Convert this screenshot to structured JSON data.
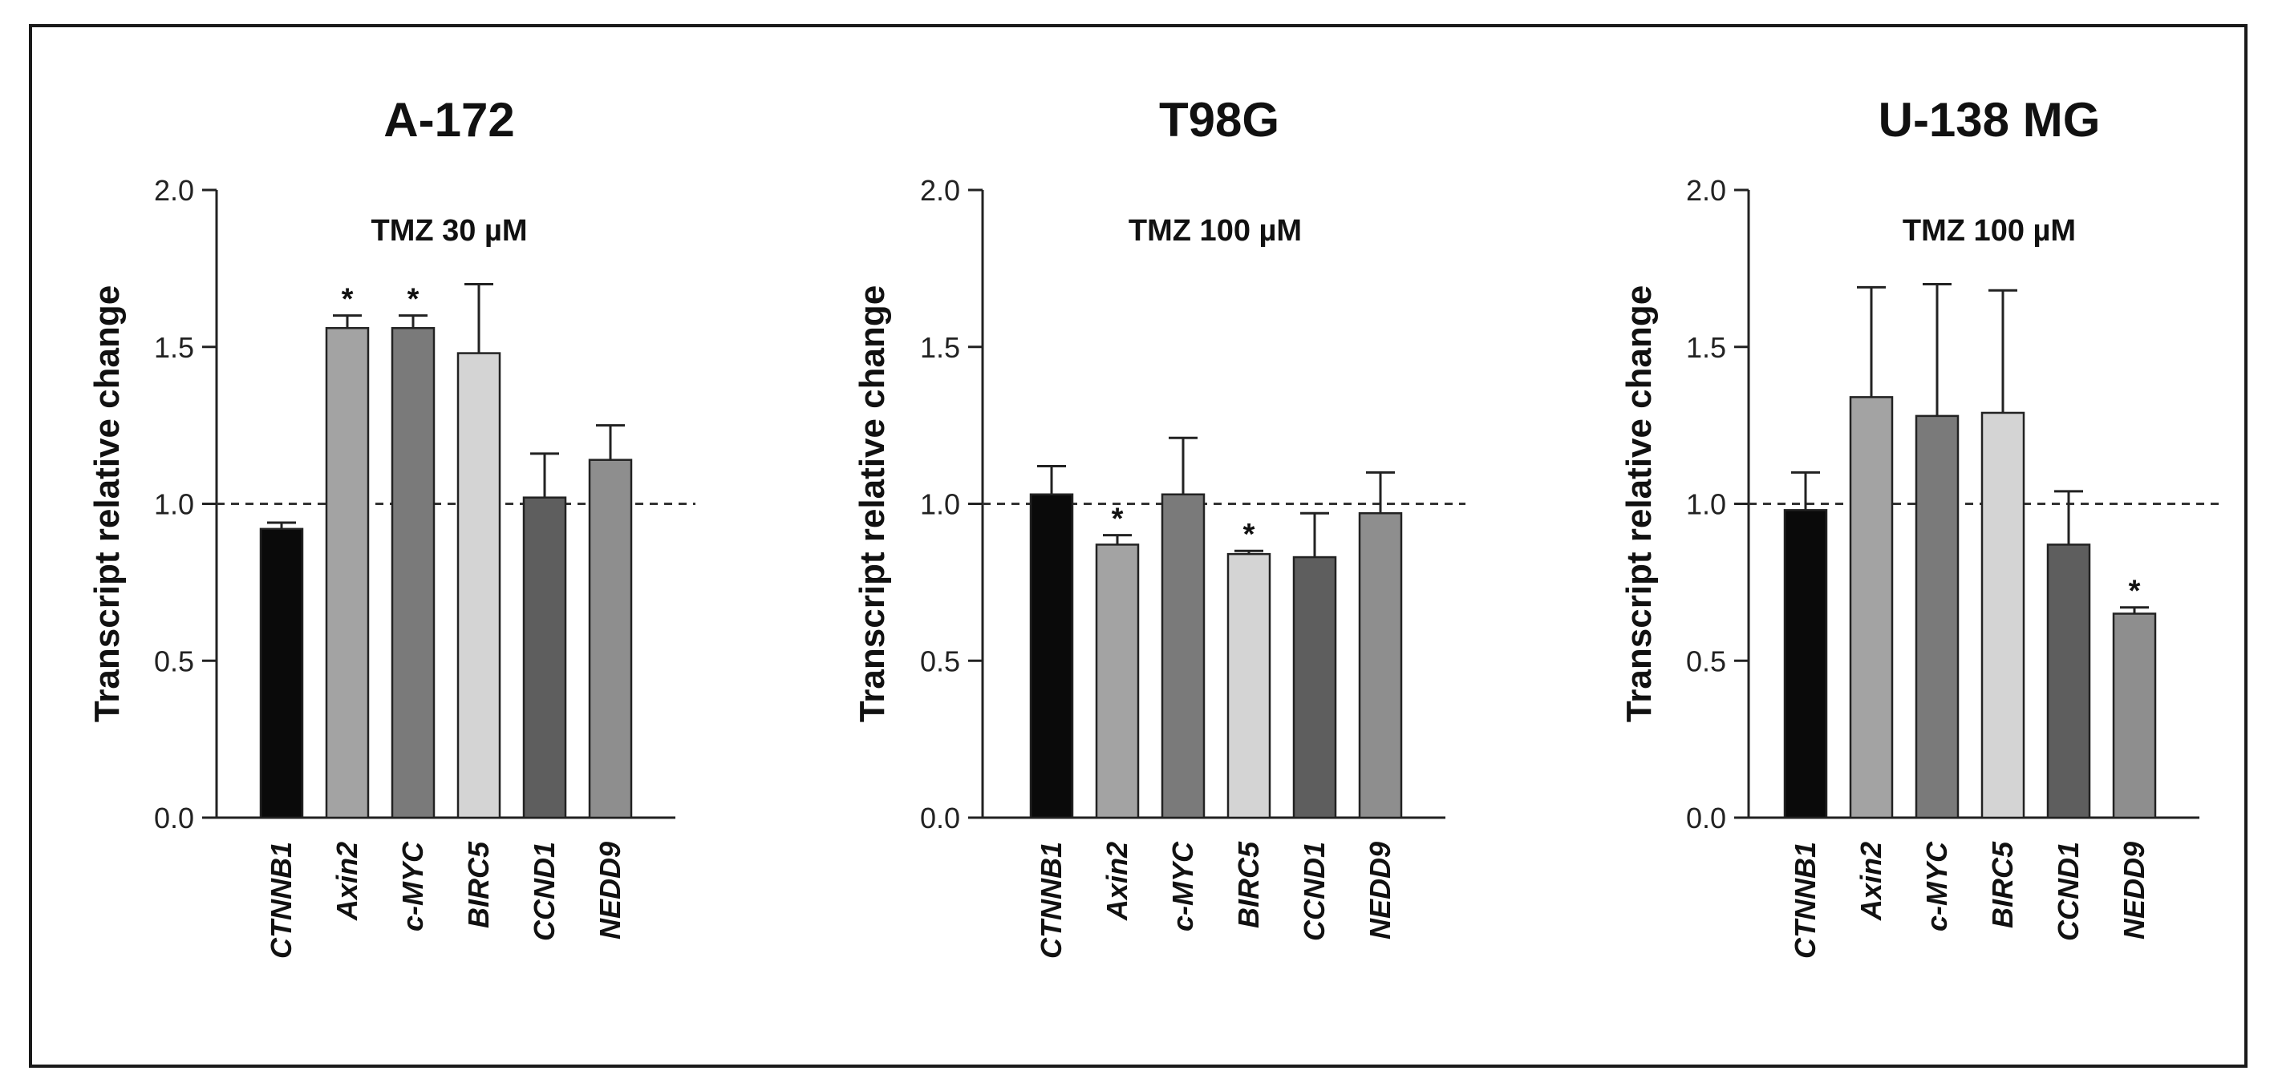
{
  "chart_data": [
    {
      "type": "bar",
      "title": "A-172",
      "subtitle": "TMZ 30 µM",
      "xlabel": "",
      "ylabel": "Transcript relative change",
      "ylim": [
        0,
        2.0
      ],
      "yticks": [
        "0.0",
        "0.5",
        "1.0",
        "1.5",
        "2.0"
      ],
      "reference_line": 1.0,
      "categories": [
        "CTNNB1",
        "Axin2",
        "c-MYC",
        "BIRC5",
        "CCND1",
        "NEDD9"
      ],
      "values": [
        0.92,
        1.56,
        1.56,
        1.48,
        1.02,
        1.14
      ],
      "errors": [
        0.02,
        0.04,
        0.04,
        0.22,
        0.14,
        0.11
      ],
      "significance": [
        "",
        "*",
        "*",
        "",
        "",
        ""
      ]
    },
    {
      "type": "bar",
      "title": "T98G",
      "subtitle": "TMZ 100 µM",
      "xlabel": "",
      "ylabel": "Transcript relative change",
      "ylim": [
        0,
        2.0
      ],
      "yticks": [
        "0.0",
        "0.5",
        "1.0",
        "1.5",
        "2.0"
      ],
      "reference_line": 1.0,
      "categories": [
        "CTNNB1",
        "Axin2",
        "c-MYC",
        "BIRC5",
        "CCND1",
        "NEDD9"
      ],
      "values": [
        1.03,
        0.87,
        1.03,
        0.84,
        0.83,
        0.97
      ],
      "errors": [
        0.09,
        0.03,
        0.18,
        0.01,
        0.14,
        0.13
      ],
      "significance": [
        "",
        "*",
        "",
        "*",
        "",
        ""
      ]
    },
    {
      "type": "bar",
      "title": "U-138 MG",
      "subtitle": "TMZ 100 µM",
      "xlabel": "",
      "ylabel": "Transcript relative change",
      "ylim": [
        0,
        2.0
      ],
      "yticks": [
        "0.0",
        "0.5",
        "1.0",
        "1.5",
        "2.0"
      ],
      "reference_line": 1.0,
      "categories": [
        "CTNNB1",
        "Axin2",
        "c-MYC",
        "BIRC5",
        "CCND1",
        "NEDD9"
      ],
      "values": [
        0.98,
        1.34,
        1.28,
        1.29,
        0.87,
        0.65
      ],
      "errors": [
        0.12,
        0.35,
        0.42,
        0.39,
        0.17,
        0.02
      ],
      "significance": [
        "",
        "",
        "",
        "",
        "",
        "*"
      ]
    }
  ],
  "colors": {
    "bars": [
      "#0a0a0a",
      "#a3a3a3",
      "#7a7a7a",
      "#d4d4d4",
      "#5e5e5e",
      "#8e8e8e"
    ],
    "outline": "#222222",
    "axis": "#222222",
    "reference_line": "#333333"
  }
}
